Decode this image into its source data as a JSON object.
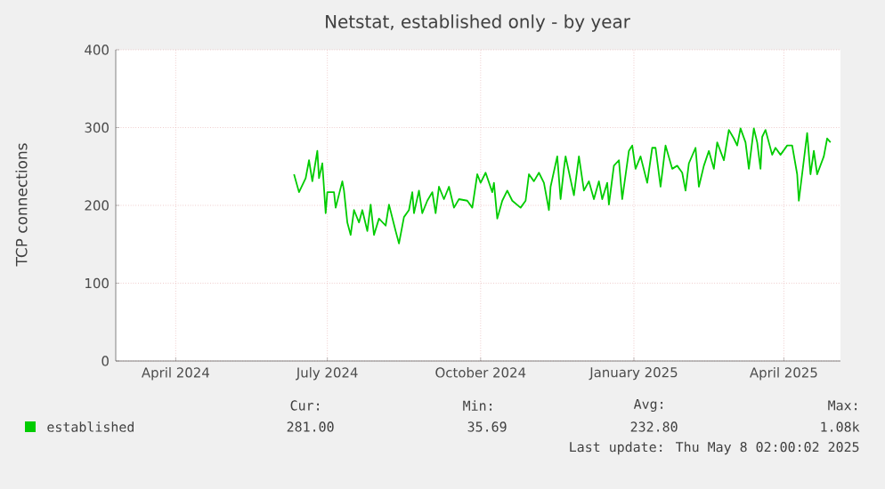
{
  "chart_data": {
    "type": "line",
    "title": "Netstat, established only - by year",
    "ylabel": "TCP connections",
    "xlim": [
      "2024-02-25",
      "2025-05-05"
    ],
    "ylim": [
      0,
      400
    ],
    "yticks": [
      0,
      100,
      200,
      300,
      400
    ],
    "xticks": [
      {
        "value": "2024-04-01",
        "label": "April 2024"
      },
      {
        "value": "2024-07-01",
        "label": "July 2024"
      },
      {
        "value": "2024-10-01",
        "label": "October 2024"
      },
      {
        "value": "2025-01-01",
        "label": "January 2025"
      },
      {
        "value": "2025-04-01",
        "label": "April 2025"
      }
    ],
    "grid": true,
    "legend": "bottom",
    "x": [
      "2024-06-11",
      "2024-06-14",
      "2024-06-18",
      "2024-06-20",
      "2024-06-22",
      "2024-06-25",
      "2024-06-26",
      "2024-06-28",
      "2024-06-30",
      "2024-07-01",
      "2024-07-05",
      "2024-07-06",
      "2024-07-10",
      "2024-07-11",
      "2024-07-13",
      "2024-07-15",
      "2024-07-17",
      "2024-07-20",
      "2024-07-22",
      "2024-07-25",
      "2024-07-27",
      "2024-07-29",
      "2024-08-01",
      "2024-08-05",
      "2024-08-07",
      "2024-08-11",
      "2024-08-13",
      "2024-08-16",
      "2024-08-19",
      "2024-08-21",
      "2024-08-22",
      "2024-08-25",
      "2024-08-27",
      "2024-08-30",
      "2024-09-02",
      "2024-09-04",
      "2024-09-06",
      "2024-09-09",
      "2024-09-12",
      "2024-09-15",
      "2024-09-18",
      "2024-09-23",
      "2024-09-26",
      "2024-09-29",
      "2024-10-01",
      "2024-10-04",
      "2024-10-08",
      "2024-10-09",
      "2024-10-11",
      "2024-10-14",
      "2024-10-17",
      "2024-10-20",
      "2024-10-25",
      "2024-10-28",
      "2024-10-30",
      "2024-11-02",
      "2024-11-05",
      "2024-11-08",
      "2024-11-11",
      "2024-11-12",
      "2024-11-16",
      "2024-11-18",
      "2024-11-20",
      "2024-11-21",
      "2024-11-26",
      "2024-11-29",
      "2024-12-02",
      "2024-12-05",
      "2024-12-08",
      "2024-12-11",
      "2024-12-13",
      "2024-12-16",
      "2024-12-17",
      "2024-12-20",
      "2024-12-23",
      "2024-12-25",
      "2024-12-29",
      "2024-12-31",
      "2025-01-02",
      "2025-01-05",
      "2025-01-09",
      "2025-01-12",
      "2025-01-14",
      "2025-01-17",
      "2025-01-20",
      "2025-01-24",
      "2025-01-27",
      "2025-01-30",
      "2025-02-01",
      "2025-02-03",
      "2025-02-07",
      "2025-02-09",
      "2025-02-12",
      "2025-02-15",
      "2025-02-18",
      "2025-02-20",
      "2025-02-24",
      "2025-02-27",
      "2025-03-02",
      "2025-03-04",
      "2025-03-06",
      "2025-03-09",
      "2025-03-11",
      "2025-03-14",
      "2025-03-16",
      "2025-03-18",
      "2025-03-19",
      "2025-03-21",
      "2025-03-25",
      "2025-03-27",
      "2025-03-30",
      "2025-04-03",
      "2025-04-06",
      "2025-04-09",
      "2025-04-10",
      "2025-04-13",
      "2025-04-15",
      "2025-04-17",
      "2025-04-19",
      "2025-04-21",
      "2025-04-25",
      "2025-04-27",
      "2025-04-29"
    ],
    "series": [
      {
        "name": "established",
        "color": "#00cc00",
        "values": [
          240,
          217,
          235,
          258,
          231,
          270,
          235,
          254,
          190,
          217,
          217,
          197,
          231,
          219,
          178,
          162,
          194,
          178,
          194,
          167,
          201,
          162,
          183,
          174,
          201,
          167,
          151,
          185,
          194,
          217,
          190,
          219,
          190,
          206,
          217,
          190,
          224,
          208,
          224,
          197,
          208,
          206,
          197,
          240,
          229,
          242,
          217,
          229,
          183,
          206,
          219,
          206,
          197,
          206,
          240,
          231,
          242,
          229,
          194,
          224,
          263,
          208,
          247,
          263,
          213,
          263,
          219,
          231,
          208,
          231,
          208,
          229,
          201,
          251,
          258,
          208,
          270,
          277,
          247,
          263,
          229,
          274,
          274,
          224,
          277,
          247,
          251,
          242,
          219,
          254,
          274,
          224,
          251,
          270,
          247,
          281,
          258,
          297,
          286,
          277,
          299,
          281,
          247,
          299,
          281,
          247,
          288,
          297,
          265,
          274,
          265,
          277,
          277,
          240,
          206,
          258,
          293,
          240,
          270,
          240,
          263,
          286,
          281
        ]
      }
    ],
    "annotations": [
      "Cur:",
      "Min:",
      "Avg:",
      "Max:",
      "281.00",
      "35.69",
      "232.80",
      "1.08k",
      "Last update: Thu May  8 02:00:02 2025"
    ]
  }
}
